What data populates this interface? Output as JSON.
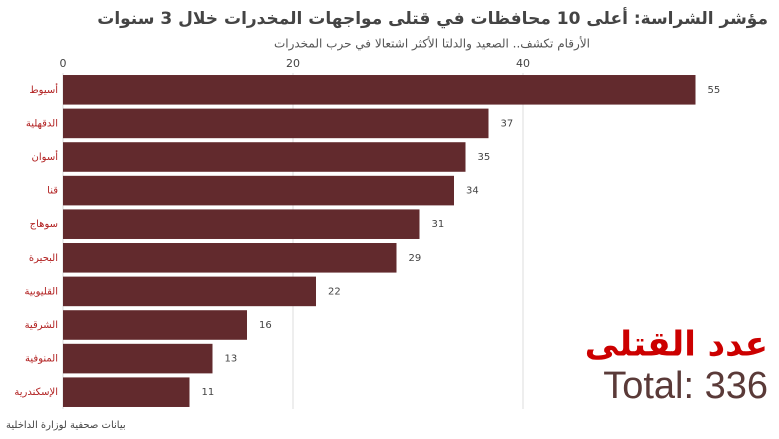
{
  "chart_data": {
    "type": "bar",
    "orientation": "horizontal",
    "title": "مؤشر الشراسة: أعلى 10 محافظات في قتلى مواجهات المخدرات خلال 3 سنوات",
    "subtitle": "الأرقام تكشف.. الصعيد والدلتا الأكثر اشتعالا في حرب المخدرات",
    "categories": [
      "أسيوط",
      "الدقهلية",
      "أسوان",
      "قنا",
      "سوهاج",
      "البحيرة",
      "القليوبية",
      "الشرقية",
      "المنوفية",
      "الإسكندرية"
    ],
    "values": [
      55,
      37,
      35,
      34,
      31,
      29,
      22,
      16,
      13,
      11
    ],
    "color": "#622a2d",
    "xlim": [
      0,
      60
    ],
    "xticks": [
      0,
      20,
      40
    ],
    "grid": true,
    "annotation_title": "عدد القتلى",
    "annotation_total": "Total: 336",
    "source": "بيانات صحفية لوزارة الداخلية"
  }
}
